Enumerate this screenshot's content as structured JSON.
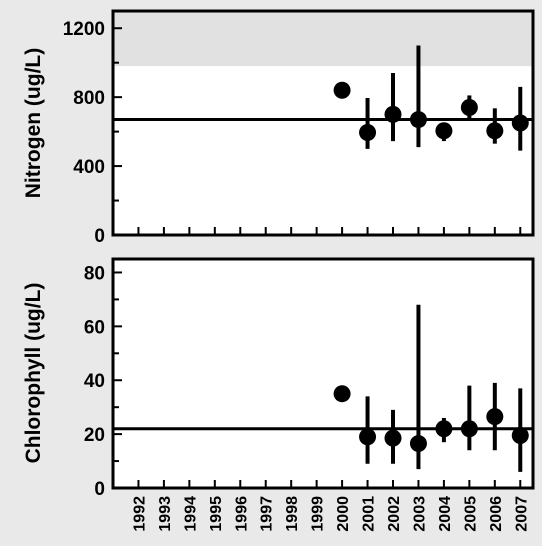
{
  "chart_data": [
    {
      "type": "scatter",
      "ylabel": "Nitrogen (ug/L)",
      "ylim": [
        0,
        1300
      ],
      "yticks": [
        0,
        400,
        800,
        1200
      ],
      "shaded_band": [
        980,
        1300
      ],
      "reference_line": 670,
      "xlim": [
        1991,
        2007.5
      ],
      "points": [
        {
          "x": 2000,
          "y": 840,
          "low": null,
          "high": null
        },
        {
          "x": 2001,
          "y": 595,
          "low": 500,
          "high": 795
        },
        {
          "x": 2002,
          "y": 700,
          "low": 545,
          "high": 940
        },
        {
          "x": 2003,
          "y": 670,
          "low": 510,
          "high": 1100
        },
        {
          "x": 2004,
          "y": 605,
          "low": 545,
          "high": 640
        },
        {
          "x": 2005,
          "y": 740,
          "low": 670,
          "high": 810
        },
        {
          "x": 2006,
          "y": 605,
          "low": 530,
          "high": 735
        },
        {
          "x": 2007,
          "y": 650,
          "low": 490,
          "high": 860
        }
      ]
    },
    {
      "type": "scatter",
      "ylabel": "Chlorophyll (ug/L)",
      "ylim": [
        0,
        85
      ],
      "yticks": [
        0,
        20,
        40,
        60,
        80
      ],
      "reference_line": 22,
      "xlim": [
        1991,
        2007.5
      ],
      "xticks": [
        "1992",
        "1993",
        "1994",
        "1995",
        "1996",
        "1997",
        "1998",
        "1999",
        "2000",
        "2001",
        "2002",
        "2003",
        "2004",
        "2005",
        "2006",
        "2007"
      ],
      "points": [
        {
          "x": 2000,
          "y": 35,
          "low": null,
          "high": null
        },
        {
          "x": 2001,
          "y": 19,
          "low": 9,
          "high": 34
        },
        {
          "x": 2002,
          "y": 18.5,
          "low": 9,
          "high": 29
        },
        {
          "x": 2003,
          "y": 16.5,
          "low": 7,
          "high": 68
        },
        {
          "x": 2004,
          "y": 22,
          "low": 17,
          "high": 26
        },
        {
          "x": 2005,
          "y": 22,
          "low": 14,
          "high": 38
        },
        {
          "x": 2006,
          "y": 26.5,
          "low": 14,
          "high": 39
        },
        {
          "x": 2007,
          "y": 19.5,
          "low": 6,
          "high": 37
        }
      ]
    }
  ],
  "colors": {
    "background": "#e9e9e9",
    "plot_area": "#ffffff",
    "shaded_band": "#e1e1e1",
    "ink": "#000000"
  }
}
